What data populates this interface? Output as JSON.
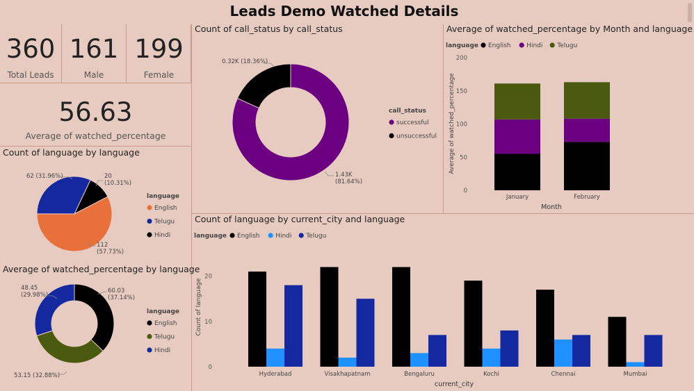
{
  "page": {
    "title": "Leads Demo Watched Details"
  },
  "kpis": [
    {
      "value": "360",
      "label": "Total Leads"
    },
    {
      "value": "161",
      "label": "Male"
    },
    {
      "value": "199",
      "label": "Female"
    }
  ],
  "avg_card": {
    "value": "56.63",
    "label": "Average of watched_percentage"
  },
  "colors": {
    "english": "#e8703a",
    "telugu": "#1428a0",
    "hindi": "#000000",
    "successful": "#6b0080",
    "unsuccessful": "#000000",
    "hindi_bar": "#1e90ff",
    "telugu_green": "#4a5a0e",
    "hindi_purple": "#6b0080"
  },
  "chart_data": [
    {
      "id": "language_pie",
      "type": "pie",
      "title": "Count of language by language",
      "legend_title": "language",
      "labels": [
        "English",
        "Telugu",
        "Hindi"
      ],
      "values": [
        112,
        62,
        20
      ],
      "data_labels": [
        "112\n(57.73%)",
        "62 (31.96%)",
        "20\n(10.31%)"
      ]
    },
    {
      "id": "watched_by_language_donut",
      "type": "pie",
      "title": "Average of watched_percentage by language",
      "legend_title": "language",
      "labels": [
        "English",
        "Telugu",
        "Hindi"
      ],
      "values": [
        60.03,
        53.15,
        48.45
      ],
      "data_labels": [
        "60.03\n(37.14%)",
        "53.15 (32.88%)",
        "48.45\n(29.98%)"
      ]
    },
    {
      "id": "call_status_donut",
      "type": "pie",
      "title": "Count of call_status by call_status",
      "legend_title": "call_status",
      "labels": [
        "successful",
        "unsuccessful"
      ],
      "values": [
        1430,
        320
      ],
      "data_labels": [
        "1.43K\n(81.64%)",
        "0.32K (18.36%)"
      ]
    },
    {
      "id": "watched_by_month_stacked",
      "type": "bar",
      "stacked": true,
      "title": "Average of watched_percentage by Month and language",
      "legend_title": "language",
      "categories": [
        "January",
        "February"
      ],
      "series": [
        {
          "name": "English",
          "values": [
            55,
            73
          ]
        },
        {
          "name": "Hindi",
          "values": [
            52,
            35
          ]
        },
        {
          "name": "Telugu",
          "values": [
            54,
            55
          ]
        }
      ],
      "xlabel": "Month",
      "ylabel": "Average of watched_percentage",
      "ylim": [
        0,
        200
      ],
      "yticks": [
        0,
        50,
        100,
        150,
        200
      ]
    },
    {
      "id": "language_by_city",
      "type": "bar",
      "title": "Count of language by current_city and language",
      "legend_title": "language",
      "categories": [
        "Hyderabad",
        "Visakhapatnam",
        "Bengaluru",
        "Kochi",
        "Chennai",
        "Mumbai"
      ],
      "series": [
        {
          "name": "English",
          "values": [
            21,
            22,
            22,
            19,
            17,
            11
          ]
        },
        {
          "name": "Hindi",
          "values": [
            4,
            2,
            3,
            4,
            6,
            1
          ]
        },
        {
          "name": "Telugu",
          "values": [
            18,
            15,
            7,
            8,
            7,
            7
          ]
        }
      ],
      "xlabel": "current_city",
      "ylabel": "Count of language",
      "ylim": [
        0,
        23
      ],
      "yticks": [
        0,
        10,
        20
      ]
    }
  ]
}
